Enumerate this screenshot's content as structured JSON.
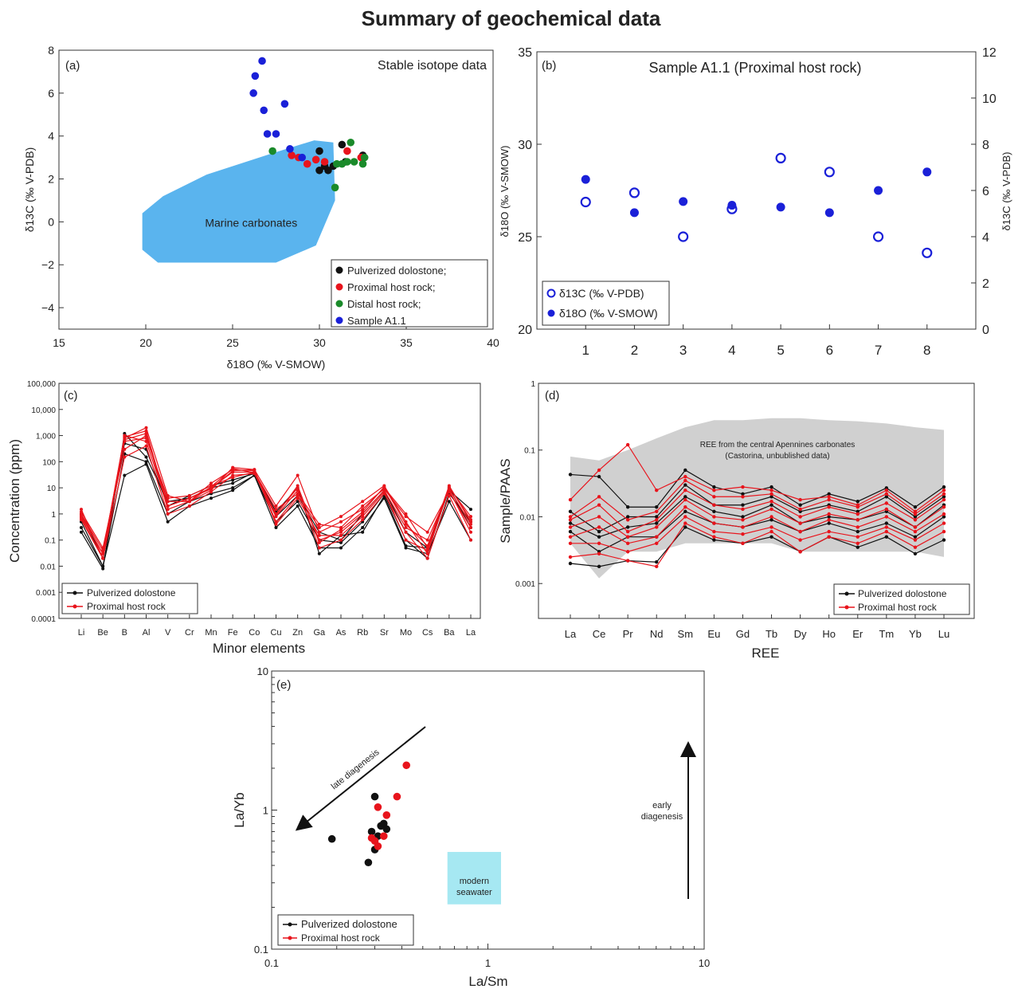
{
  "page": {
    "title": "Summary of geochemical data"
  },
  "chart_data": [
    {
      "panel": "(a)",
      "type": "scatter",
      "title": "Stable isotope data",
      "xlabel": "δ18O (‰ V-SMOW)",
      "ylabel": "δ13C (‰ V-PDB)",
      "xlim": [
        15,
        40
      ],
      "ylim": [
        -5,
        8
      ],
      "xticks": [
        15,
        20,
        25,
        30,
        35,
        40
      ],
      "yticks": [
        -4,
        -2,
        0,
        2,
        4,
        6,
        8
      ],
      "region": {
        "label": "Marine carbonates",
        "color": "#5ab4ee",
        "polygon": [
          [
            20.7,
            -1.9
          ],
          [
            27.5,
            -1.9
          ],
          [
            29.8,
            -1.1
          ],
          [
            30.9,
            1.0
          ],
          [
            30.8,
            3.7
          ],
          [
            29.7,
            3.8
          ],
          [
            27.3,
            3.2
          ],
          [
            23.5,
            2.2
          ],
          [
            21.0,
            1.2
          ],
          [
            19.8,
            0.4
          ],
          [
            19.8,
            -1.3
          ]
        ]
      },
      "legend_position": "bottom-right",
      "series": [
        {
          "name": "Pulverized dolostone;",
          "color": "#111111",
          "points": [
            [
              30.0,
              3.3
            ],
            [
              30.3,
              2.6
            ],
            [
              30.0,
              2.4
            ],
            [
              30.5,
              2.4
            ],
            [
              30.8,
              2.6
            ],
            [
              31.3,
              3.6
            ],
            [
              31.5,
              2.8
            ],
            [
              32.5,
              3.1
            ]
          ]
        },
        {
          "name": "Proximal host rock;",
          "color": "#e8141c",
          "points": [
            [
              28.4,
              3.1
            ],
            [
              28.8,
              3.0
            ],
            [
              29.3,
              2.7
            ],
            [
              29.8,
              2.9
            ],
            [
              30.3,
              2.8
            ],
            [
              31.6,
              3.3
            ],
            [
              32.4,
              3.0
            ]
          ]
        },
        {
          "name": "Distal host rock;",
          "color": "#1a8a2a",
          "points": [
            [
              27.3,
              3.3
            ],
            [
              30.9,
              1.6
            ],
            [
              31.0,
              2.7
            ],
            [
              31.3,
              2.7
            ],
            [
              31.6,
              2.8
            ],
            [
              31.8,
              3.7
            ],
            [
              32.0,
              2.8
            ],
            [
              32.5,
              2.7
            ],
            [
              32.6,
              3.0
            ]
          ]
        },
        {
          "name": "Sample A1.1",
          "color": "#1a20d8",
          "points": [
            [
              26.3,
              6.8
            ],
            [
              26.2,
              6.0
            ],
            [
              26.7,
              7.5
            ],
            [
              26.8,
              5.2
            ],
            [
              27.0,
              4.1
            ],
            [
              27.5,
              4.1
            ],
            [
              28.0,
              5.5
            ],
            [
              28.3,
              3.4
            ],
            [
              29.0,
              3.0
            ]
          ]
        }
      ]
    },
    {
      "panel": "(b)",
      "type": "scatter",
      "title": "Sample A1.1 (Proximal host rock)",
      "xlabel": "",
      "ylabel_left": "δ18O (‰ V-SMOW)",
      "ylabel_right": "δ13C (‰ V-PDB)",
      "categories": [
        1,
        2,
        3,
        4,
        5,
        6,
        7,
        8
      ],
      "ylim_left": [
        20,
        35
      ],
      "ylim_right": [
        0,
        12
      ],
      "yticks_left": [
        20,
        25,
        30,
        35
      ],
      "yticks_right": [
        0,
        2,
        4,
        6,
        8,
        10,
        12
      ],
      "legend_position": "bottom-left",
      "series": [
        {
          "name": "δ13C (‰ V-PDB)",
          "axis": "right",
          "marker": "open",
          "color": "#1a20d8",
          "values": [
            5.5,
            5.9,
            4.0,
            5.2,
            7.4,
            6.8,
            4.0,
            3.3
          ]
        },
        {
          "name": "δ18O (‰ V-SMOW)",
          "axis": "left",
          "marker": "filled",
          "color": "#1a20d8",
          "values": [
            28.1,
            26.3,
            26.9,
            26.7,
            26.6,
            26.3,
            27.5,
            28.5
          ]
        }
      ]
    },
    {
      "panel": "(c)",
      "type": "line",
      "title": "",
      "xlabel": "Minor elements",
      "ylabel": "Concentration (ppm)",
      "yscale": "log",
      "ylim": [
        0.0001,
        100000
      ],
      "yticks": [
        "0.0001",
        "0.001",
        "0.01",
        "0.1",
        "1",
        "10",
        "100",
        "1,000",
        "10,000",
        "100,000"
      ],
      "categories": [
        "Li",
        "Be",
        "B",
        "Al",
        "V",
        "Cr",
        "Mn",
        "Fe",
        "Co",
        "Cu",
        "Zn",
        "Ga",
        "As",
        "Rb",
        "Sr",
        "Mo",
        "Cs",
        "Ba",
        "La"
      ],
      "legend_position": "bottom-left",
      "series": [
        {
          "name": "Pulverized dolostone",
          "color": "#111111",
          "lines": [
            [
              0.2,
              0.008,
              1200,
              150,
              3,
              4,
              10,
              15,
              40,
              1.2,
              10,
              0.03,
              0.15,
              0.2,
              5,
              0.06,
              0.05,
              8,
              1.5
            ],
            [
              0.5,
              0.01,
              200,
              100,
              1,
              3,
              6,
              10,
              30,
              0.5,
              3,
              0.1,
              0.08,
              0.5,
              6,
              0.1,
              0.02,
              6,
              0.5
            ],
            [
              1.0,
              0.02,
              500,
              300,
              2,
              5,
              12,
              20,
              35,
              0.8,
              5,
              0.2,
              0.1,
              1.0,
              8,
              0.2,
              0.05,
              10,
              0.3
            ],
            [
              0.3,
              0.01,
              30,
              80,
              0.5,
              2,
              4,
              8,
              30,
              0.3,
              2,
              0.05,
              0.05,
              0.3,
              4,
              0.05,
              0.03,
              3,
              0.1
            ]
          ]
        },
        {
          "name": "Proximal host rock",
          "color": "#e8141c",
          "lines": [
            [
              1.5,
              0.02,
              800,
              2000,
              5,
              3,
              8,
              60,
              50,
              2,
              30,
              0.2,
              0.5,
              1.5,
              10,
              1,
              0.05,
              12,
              0.5
            ],
            [
              0.8,
              0.03,
              1000,
              600,
              2,
              4,
              10,
              40,
              40,
              1,
              10,
              0.1,
              0.2,
              1,
              8,
              0.3,
              0.1,
              8,
              0.2
            ],
            [
              1.2,
              0.05,
              300,
              1000,
              3,
              3,
              15,
              50,
              45,
              0.5,
              5,
              0.3,
              0.8,
              3,
              12,
              0.5,
              0.03,
              10,
              0.8
            ],
            [
              0.6,
              0.02,
              150,
              400,
              1,
              2,
              7,
              30,
              35,
              0.8,
              8,
              0.05,
              0.1,
              0.6,
              6,
              0.2,
              0.02,
              5,
              0.1
            ],
            [
              1.0,
              0.04,
              600,
              800,
              4,
              5,
              12,
              25,
              40,
              1.5,
              6,
              0.4,
              0.3,
              2,
              9,
              0.8,
              0.2,
              7,
              0.3
            ],
            [
              0.9,
              0.03,
              900,
              1500,
              2,
              4,
              9,
              45,
              50,
              0.4,
              4,
              0.15,
              0.15,
              0.8,
              7,
              0.1,
              0.04,
              9,
              0.4
            ],
            [
              0.7,
              0.02,
              700,
              1200,
              1.5,
              3,
              11,
              55,
              38,
              0.9,
              12,
              0.08,
              0.25,
              1.2,
              11,
              0.4,
              0.06,
              11,
              0.6
            ]
          ]
        }
      ]
    },
    {
      "panel": "(d)",
      "type": "line",
      "title": "",
      "xlabel": "REE",
      "ylabel": "Sample/PAAS",
      "yscale": "log",
      "ylim": [
        0.0003,
        1
      ],
      "yticks": [
        "0.001",
        "0.01",
        "0.1",
        "1"
      ],
      "categories": [
        "La",
        "Ce",
        "Pr",
        "Nd",
        "Sm",
        "Eu",
        "Gd",
        "Tb",
        "Dy",
        "Ho",
        "Er",
        "Tm",
        "Yb",
        "Lu"
      ],
      "band_label_1": "REE from the central Apennines carbonates",
      "band_label_2": "(Castorina, unbublished data)",
      "band_color": "#d0d0d0",
      "band_upper": [
        0.08,
        0.07,
        0.1,
        0.15,
        0.22,
        0.28,
        0.28,
        0.3,
        0.3,
        0.28,
        0.27,
        0.25,
        0.22,
        0.2
      ],
      "band_lower": [
        0.004,
        0.0012,
        0.003,
        0.003,
        0.004,
        0.004,
        0.004,
        0.004,
        0.003,
        0.003,
        0.003,
        0.003,
        0.003,
        0.0025
      ],
      "legend_position": "bottom-right",
      "series": [
        {
          "name": "Pulverized dolostone",
          "color": "#111111",
          "lines": [
            [
              0.043,
              0.04,
              0.014,
              0.014,
              0.05,
              0.028,
              0.022,
              0.028,
              0.015,
              0.022,
              0.017,
              0.027,
              0.014,
              0.028
            ],
            [
              0.012,
              0.006,
              0.01,
              0.01,
              0.03,
              0.015,
              0.015,
              0.02,
              0.012,
              0.015,
              0.012,
              0.02,
              0.01,
              0.02
            ],
            [
              0.008,
              0.005,
              0.007,
              0.008,
              0.02,
              0.012,
              0.01,
              0.015,
              0.008,
              0.01,
              0.009,
              0.012,
              0.007,
              0.015
            ],
            [
              0.006,
              0.003,
              0.005,
              0.005,
              0.012,
              0.008,
              0.007,
              0.009,
              0.006,
              0.008,
              0.006,
              0.008,
              0.005,
              0.01
            ],
            [
              0.002,
              0.0018,
              0.0022,
              0.0021,
              0.007,
              0.0045,
              0.004,
              0.005,
              0.003,
              0.005,
              0.0035,
              0.005,
              0.0028,
              0.0045
            ]
          ]
        },
        {
          "name": "Proximal host rock",
          "color": "#e8141c",
          "lines": [
            [
              0.018,
              0.05,
              0.12,
              0.025,
              0.04,
              0.025,
              0.028,
              0.025,
              0.018,
              0.02,
              0.015,
              0.025,
              0.012,
              0.025
            ],
            [
              0.01,
              0.02,
              0.009,
              0.012,
              0.035,
              0.02,
              0.02,
              0.022,
              0.013,
              0.018,
              0.014,
              0.022,
              0.011,
              0.022
            ],
            [
              0.009,
              0.015,
              0.006,
              0.009,
              0.025,
              0.015,
              0.013,
              0.017,
              0.01,
              0.014,
              0.011,
              0.016,
              0.009,
              0.018
            ],
            [
              0.007,
              0.01,
              0.005,
              0.007,
              0.018,
              0.01,
              0.009,
              0.013,
              0.008,
              0.011,
              0.009,
              0.013,
              0.007,
              0.014
            ],
            [
              0.005,
              0.007,
              0.004,
              0.005,
              0.014,
              0.008,
              0.007,
              0.01,
              0.006,
              0.009,
              0.007,
              0.01,
              0.006,
              0.011
            ],
            [
              0.004,
              0.004,
              0.003,
              0.004,
              0.01,
              0.006,
              0.0055,
              0.007,
              0.0045,
              0.006,
              0.005,
              0.007,
              0.0045,
              0.008
            ],
            [
              0.0025,
              0.0028,
              0.0022,
              0.0018,
              0.008,
              0.005,
              0.004,
              0.006,
              0.003,
              0.005,
              0.004,
              0.006,
              0.0035,
              0.006
            ]
          ]
        }
      ]
    },
    {
      "panel": "(e)",
      "type": "scatter",
      "title": "",
      "xlabel": "La/Sm",
      "ylabel": "La/Yb",
      "xscale": "log",
      "yscale": "log",
      "xlim": [
        0.1,
        10
      ],
      "ylim": [
        0.1,
        10
      ],
      "xticks": [
        "0.1",
        "1",
        "10"
      ],
      "yticks": [
        "0.1",
        "1",
        "10"
      ],
      "annotations": {
        "late": "late diagenesis",
        "early_1": "early",
        "early_2": "diagenesis",
        "seawater_1": "modern",
        "seawater_2": "seawater"
      },
      "seawater_box": {
        "x": [
          0.65,
          1.15
        ],
        "y": [
          0.21,
          0.5
        ],
        "color": "#a6e8f2"
      },
      "legend_position": "bottom-left",
      "series": [
        {
          "name": "Pulverized dolostone",
          "color": "#111111",
          "points": [
            [
              0.19,
              0.62
            ],
            [
              0.28,
              0.42
            ],
            [
              0.29,
              0.7
            ],
            [
              0.3,
              1.25
            ],
            [
              0.3,
              0.52
            ],
            [
              0.31,
              0.65
            ],
            [
              0.32,
              0.77
            ],
            [
              0.33,
              0.8
            ],
            [
              0.34,
              0.73
            ]
          ]
        },
        {
          "name": "Proximal host rock",
          "color": "#e8141c",
          "points": [
            [
              0.29,
              0.63
            ],
            [
              0.3,
              0.6
            ],
            [
              0.31,
              1.05
            ],
            [
              0.31,
              0.55
            ],
            [
              0.33,
              0.65
            ],
            [
              0.34,
              0.92
            ],
            [
              0.38,
              1.25
            ],
            [
              0.42,
              2.1
            ]
          ]
        }
      ]
    }
  ]
}
